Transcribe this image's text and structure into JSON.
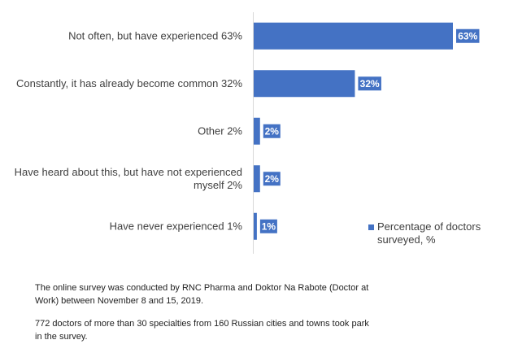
{
  "chart_data": {
    "type": "bar",
    "orientation": "horizontal",
    "categories": [
      "Not often, but have experienced 63%",
      "Constantly, it has already become common 32%",
      "Other 2%",
      "Have heard about this, but have not experienced myself 2%",
      "Have never experienced 1%"
    ],
    "series": [
      {
        "name": "Percentage of doctors surveyed, %",
        "values": [
          63,
          32,
          2,
          2,
          1
        ],
        "labels": [
          "63%",
          "32%",
          "2%",
          "2%",
          "1%"
        ],
        "color": "#4472c4"
      }
    ],
    "xlim": [
      0,
      63
    ],
    "grid": false,
    "legend_position": "right"
  },
  "notes": [
    "The online survey was conducted by RNC Pharma and Doktor Na Rabote (Doctor at Work) between November 8 and 15, 2019.",
    "772 doctors of more than 30 specialties from 160 Russian cities and towns took park in the survey."
  ]
}
